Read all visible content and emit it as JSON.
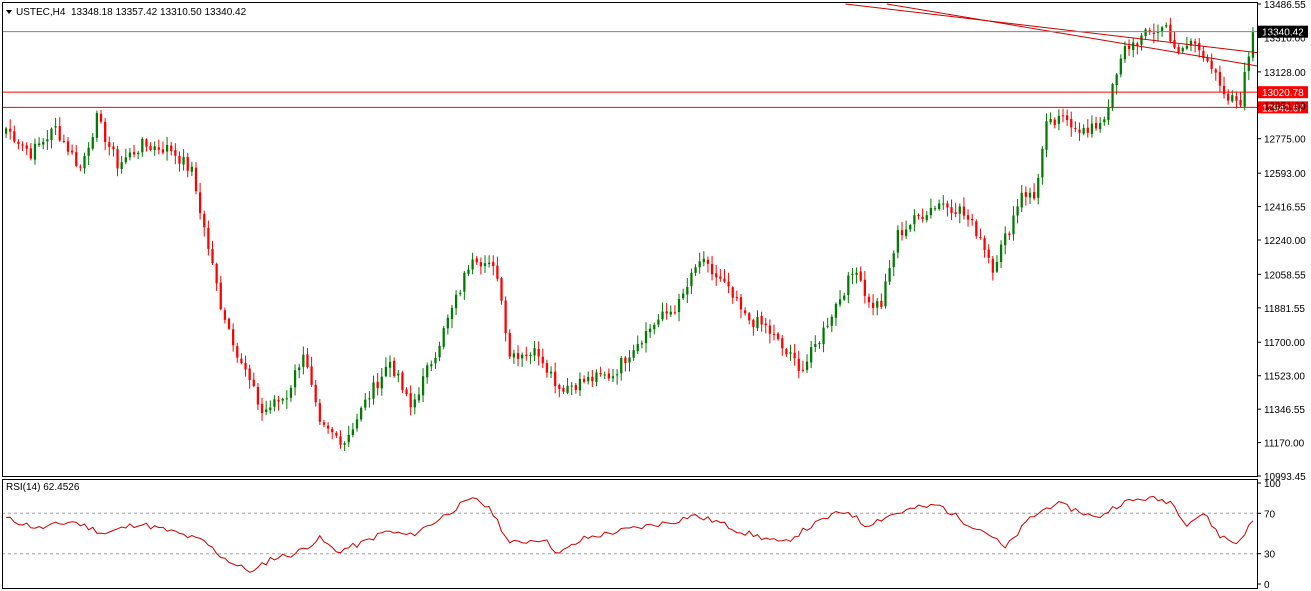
{
  "header": {
    "symbol": "USTEC,H4",
    "ohlc": "13348.18 13357.42 13310.50 13340.42"
  },
  "rsi_header": "RSI(14) 62.4526",
  "colors": {
    "bull": "#007a00",
    "bear": "#ff0000",
    "level_line": "#ff0000",
    "trend_line": "#cc0000",
    "last_price_line": "#778899",
    "rsi_line": "#cc0000",
    "frame": "#000000",
    "grid_dash": "#a0a0a0"
  },
  "chart_data": [
    {
      "type": "candlestick",
      "title": "USTEC,H4",
      "ylim": [
        10993.45,
        13486.55
      ],
      "y_ticks": [
        "13486.55",
        "13310.00",
        "13128.00",
        "12951.00",
        "12775.00",
        "12593.00",
        "12416.55",
        "12240.00",
        "12058.55",
        "11881.55",
        "11700.00",
        "11523.00",
        "11346.55",
        "11170.00",
        "10993.45"
      ],
      "last_price": 13340.42,
      "last_price_label": "13340.42",
      "levels": [
        {
          "value": 13020.78,
          "label": "13020.78"
        },
        {
          "value": 12940.67,
          "label": "12940.67"
        }
      ],
      "trendlines": [
        {
          "from": [
            0.672,
            13486.55
          ],
          "to": [
            1.0,
            13230.0
          ]
        },
        {
          "from": [
            0.705,
            13486.55
          ],
          "to": [
            1.0,
            13160.0
          ]
        }
      ],
      "anchors": [
        [
          0,
          12830
        ],
        [
          6,
          12700
        ],
        [
          12,
          12830
        ],
        [
          18,
          12620
        ],
        [
          22,
          12880
        ],
        [
          27,
          12640
        ],
        [
          33,
          12740
        ],
        [
          40,
          12720
        ],
        [
          45,
          12600
        ],
        [
          48,
          12300
        ],
        [
          52,
          11900
        ],
        [
          56,
          11650
        ],
        [
          62,
          11330
        ],
        [
          68,
          11420
        ],
        [
          72,
          11650
        ],
        [
          76,
          11250
        ],
        [
          82,
          11180
        ],
        [
          88,
          11420
        ],
        [
          93,
          11600
        ],
        [
          98,
          11350
        ],
        [
          104,
          11650
        ],
        [
          110,
          11980
        ],
        [
          113,
          12170
        ],
        [
          119,
          12060
        ],
        [
          122,
          11640
        ],
        [
          129,
          11650
        ],
        [
          134,
          11460
        ],
        [
          141,
          11500
        ],
        [
          147,
          11530
        ],
        [
          152,
          11680
        ],
        [
          157,
          11800
        ],
        [
          163,
          11900
        ],
        [
          168,
          12130
        ],
        [
          174,
          12000
        ],
        [
          179,
          11830
        ],
        [
          184,
          11780
        ],
        [
          189,
          11640
        ],
        [
          193,
          11560
        ],
        [
          197,
          11720
        ],
        [
          201,
          11900
        ],
        [
          206,
          12100
        ],
        [
          209,
          11900
        ],
        [
          212,
          11900
        ],
        [
          216,
          12270
        ],
        [
          222,
          12380
        ],
        [
          226,
          12440
        ],
        [
          231,
          12400
        ],
        [
          236,
          12260
        ],
        [
          239,
          12100
        ],
        [
          243,
          12300
        ],
        [
          246,
          12500
        ],
        [
          249,
          12460
        ],
        [
          252,
          12840
        ],
        [
          257,
          12880
        ],
        [
          262,
          12800
        ],
        [
          266,
          12890
        ],
        [
          271,
          13250
        ],
        [
          276,
          13320
        ],
        [
          281,
          13370
        ],
        [
          284,
          13210
        ],
        [
          287,
          13290
        ],
        [
          291,
          13210
        ],
        [
          295,
          12980
        ],
        [
          299,
          12980
        ],
        [
          302,
          13340
        ]
      ],
      "rsi": {
        "label": "RSI(14)",
        "value": 62.4526,
        "ylim": [
          0,
          100
        ],
        "levels": [
          30,
          70
        ],
        "y_ticks": [
          "100",
          "70",
          "30",
          "0"
        ],
        "anchors": [
          [
            0,
            65
          ],
          [
            8,
            55
          ],
          [
            16,
            62
          ],
          [
            24,
            50
          ],
          [
            32,
            60
          ],
          [
            40,
            52
          ],
          [
            48,
            42
          ],
          [
            52,
            28
          ],
          [
            56,
            18
          ],
          [
            60,
            12
          ],
          [
            64,
            25
          ],
          [
            70,
            30
          ],
          [
            76,
            45
          ],
          [
            80,
            32
          ],
          [
            86,
            40
          ],
          [
            92,
            52
          ],
          [
            98,
            48
          ],
          [
            104,
            62
          ],
          [
            110,
            78
          ],
          [
            114,
            85
          ],
          [
            118,
            70
          ],
          [
            122,
            40
          ],
          [
            130,
            45
          ],
          [
            134,
            30
          ],
          [
            140,
            45
          ],
          [
            148,
            52
          ],
          [
            156,
            58
          ],
          [
            162,
            62
          ],
          [
            166,
            68
          ],
          [
            172,
            62
          ],
          [
            178,
            52
          ],
          [
            184,
            45
          ],
          [
            188,
            40
          ],
          [
            194,
            55
          ],
          [
            200,
            68
          ],
          [
            204,
            72
          ],
          [
            208,
            58
          ],
          [
            214,
            68
          ],
          [
            220,
            75
          ],
          [
            226,
            78
          ],
          [
            232,
            62
          ],
          [
            238,
            50
          ],
          [
            242,
            35
          ],
          [
            248,
            65
          ],
          [
            254,
            80
          ],
          [
            260,
            72
          ],
          [
            264,
            65
          ],
          [
            270,
            80
          ],
          [
            276,
            85
          ],
          [
            282,
            82
          ],
          [
            286,
            60
          ],
          [
            290,
            70
          ],
          [
            294,
            48
          ],
          [
            298,
            40
          ],
          [
            302,
            62
          ]
        ]
      }
    }
  ]
}
